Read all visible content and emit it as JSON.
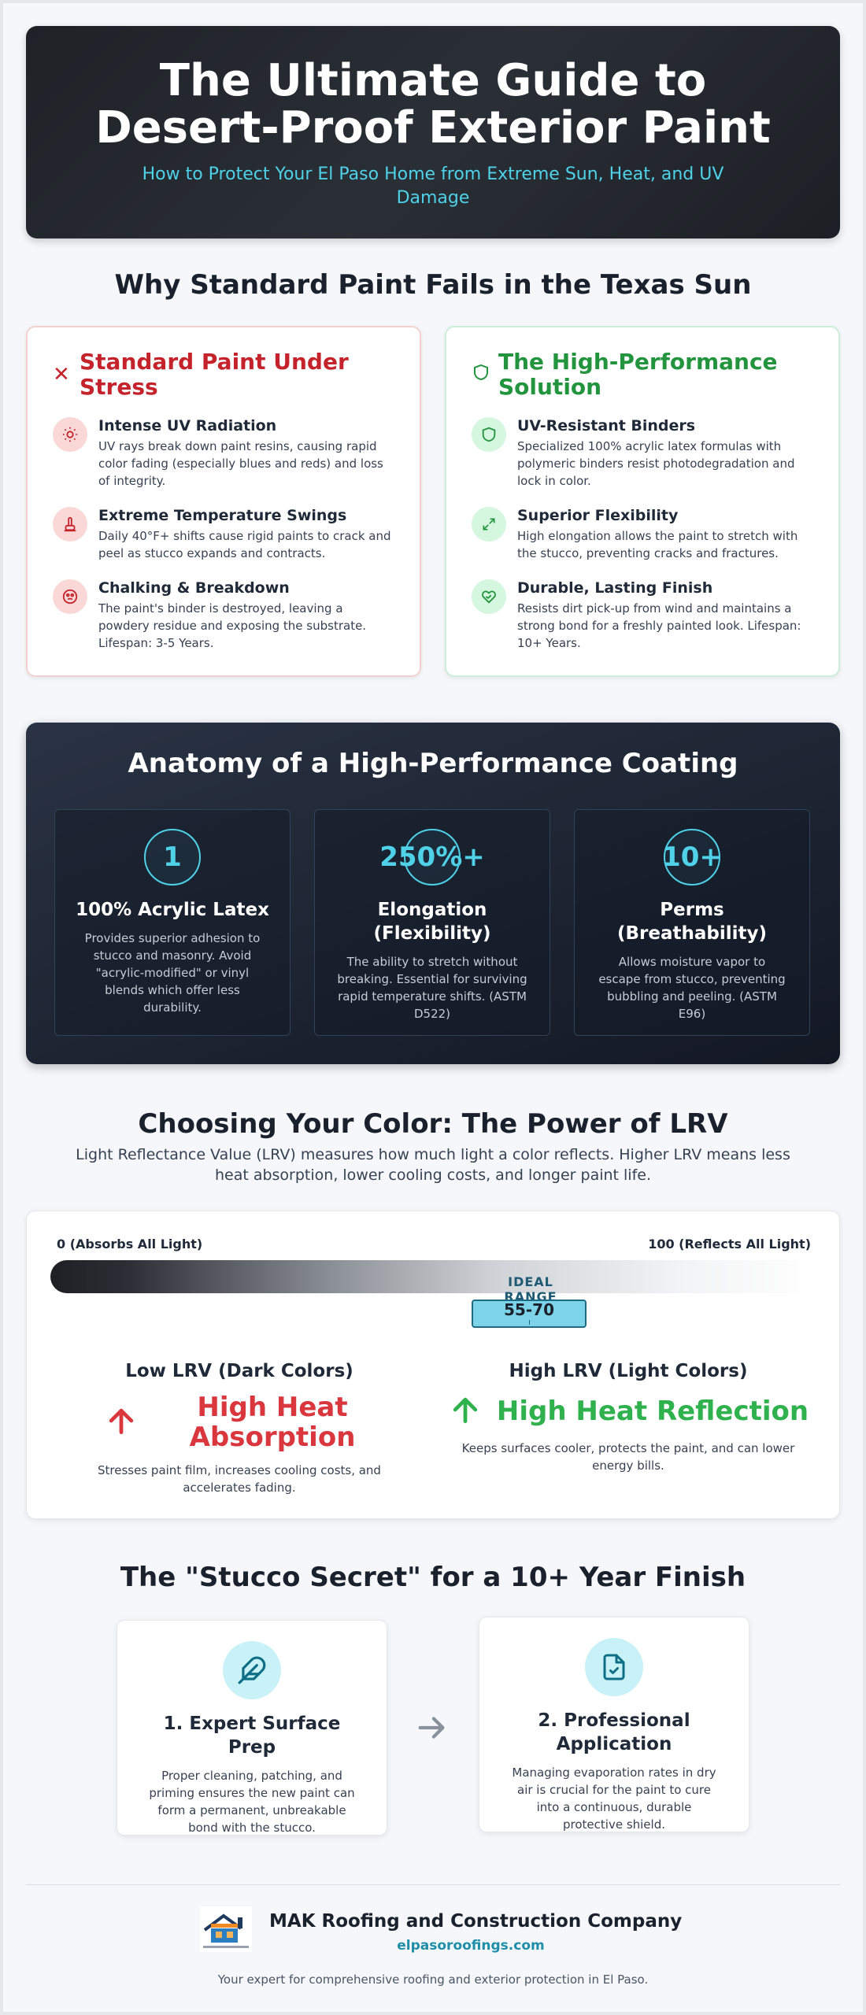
{
  "hero": {
    "title": "The Ultimate Guide to Desert-Proof Exterior Paint",
    "subtitle": "How to Protect Your El Paso Home from Extreme Sun, Heat, and UV Damage"
  },
  "why": {
    "title": "Why Standard Paint Fails in the Texas Sun",
    "standard": {
      "title": "Standard Paint Under Stress",
      "items": [
        {
          "icon": "sun-icon",
          "title": "Intense UV Radiation",
          "text": "UV rays break down paint resins, causing rapid color fading (especially blues and reds) and loss of integrity."
        },
        {
          "icon": "thermometer-icon",
          "title": "Extreme Temperature Swings",
          "text": "Daily 40°F+ shifts cause rigid paints to crack and peel as stucco expands and contracts."
        },
        {
          "icon": "breakdown-icon",
          "title": "Chalking & Breakdown",
          "text": "The paint's binder is destroyed, leaving a powdery residue and exposing the substrate. Lifespan: 3-5 Years."
        }
      ]
    },
    "solution": {
      "title": "The High-Performance Solution",
      "items": [
        {
          "icon": "shield-icon",
          "title": "UV-Resistant Binders",
          "text": "Specialized 100% acrylic latex formulas with polymeric binders resist photodegradation and lock in color."
        },
        {
          "icon": "expand-icon",
          "title": "Superior Flexibility",
          "text": "High elongation allows the paint to stretch with the stucco, preventing cracks and fractures."
        },
        {
          "icon": "handshake-heart-icon",
          "title": "Durable, Lasting Finish",
          "text": "Resists dirt pick-up from wind and maintains a strong bond for a freshly painted look. Lifespan: 10+ Years."
        }
      ]
    }
  },
  "anatomy": {
    "title": "Anatomy of a High-Performance Coating",
    "stats": [
      {
        "num": "1",
        "title": "100% Acrylic Latex",
        "text": "Provides superior adhesion to stucco and masonry. Avoid \"acrylic-modified\" or vinyl blends which offer less durability."
      },
      {
        "num": "250%+",
        "title": "Elongation (Flexibility)",
        "text": "The ability to stretch without breaking. Essential for surviving rapid temperature shifts. (ASTM D522)"
      },
      {
        "num": "10+",
        "title": "Perms (Breathability)",
        "text": "Allows moisture vapor to escape from stucco, preventing bubbling and peeling. (ASTM E96)"
      }
    ]
  },
  "lrv": {
    "title": "Choosing Your Color: The Power of LRV",
    "intro": "Light Reflectance Value (LRV) measures how much light a color reflects. Higher LRV means less heat absorption, lower cooling costs, and longer paint life.",
    "scale_min_label": "0 (Absorbs All Light)",
    "scale_max_label": "100 (Reflects All Light)",
    "ideal_label": "IDEAL RANGE",
    "ideal_range": "55-70",
    "low": {
      "title": "Low LRV (Dark Colors)",
      "verdict": "High Heat Absorption",
      "text": "Stresses paint film, increases cooling costs, and accelerates fading.",
      "color": "#d9363e"
    },
    "high": {
      "title": "High LRV (Light Colors)",
      "verdict": "High Heat Reflection",
      "text": "Keeps surfaces cooler, protects the paint, and can lower energy bills.",
      "color": "#2fb14e"
    }
  },
  "stucco": {
    "title": "The \"Stucco Secret\" for a 10+ Year Finish",
    "steps": [
      {
        "icon": "feather-icon",
        "title": "1. Expert Surface Prep",
        "text": "Proper cleaning, patching, and priming ensures the new paint can form a permanent, unbreakable bond with the stucco."
      },
      {
        "icon": "file-check-icon",
        "title": "2. Professional Application",
        "text": "Managing evaporation rates in dry air is crucial for the paint to cure into a continuous, durable protective shield."
      }
    ]
  },
  "footer": {
    "company": "MAK Roofing and Construction Company",
    "domain": "elpasoroofings.com",
    "tagline": "Your expert for comprehensive roofing and exterior protection in El Paso."
  }
}
